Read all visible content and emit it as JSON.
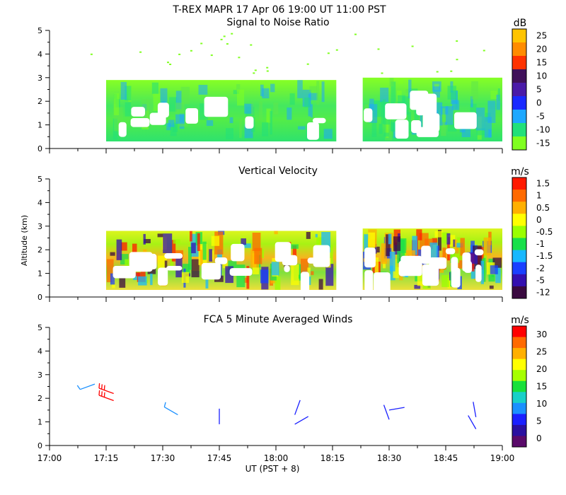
{
  "figure": {
    "title": "T-REX  MAPR 17 Apr 06  19:00 UT  11:00  PST",
    "xlabel": "UT  (PST + 8)",
    "ylabel": "Altitude (km)"
  },
  "chart_data": [
    {
      "id": "snr",
      "type": "heatmap",
      "title": "Signal to Noise Ratio",
      "unit": "dB",
      "x_range_minutes": [
        1020,
        1140
      ],
      "ylim": [
        0,
        5
      ],
      "y_ticks": [
        0,
        1,
        2,
        3,
        4,
        5
      ],
      "colorbar_labels": [
        "25",
        "20",
        "15",
        "10",
        "5",
        "0",
        "-5",
        "-10",
        "-15"
      ],
      "colorbar_colors": [
        "#ffc400",
        "#ff8c00",
        "#ff3300",
        "#40105a",
        "#4a1aa8",
        "#1a2aff",
        "#1ea8ff",
        "#22e07a",
        "#80ff20"
      ],
      "data_segments": [
        {
          "start_minutes": 1035,
          "end_minutes": 1096,
          "top_km": 2.9,
          "bottom_km": 0.3
        },
        {
          "start_minutes": 1103,
          "end_minutes": 1140,
          "top_km": 3.0,
          "bottom_km": 0.3
        }
      ]
    },
    {
      "id": "velocity",
      "type": "heatmap",
      "title": "Vertical Velocity",
      "unit": "m/s",
      "x_range_minutes": [
        1020,
        1140
      ],
      "ylim": [
        0,
        5
      ],
      "y_ticks": [
        0,
        1,
        2,
        3,
        4,
        5
      ],
      "colorbar_labels": [
        "1.5",
        "1",
        "0.5",
        "0",
        "-0.5",
        "-1",
        "-1.5",
        "-2",
        "-5",
        "-12"
      ],
      "colorbar_colors": [
        "#ff1a00",
        "#ff6a00",
        "#ffb000",
        "#ffff00",
        "#9aff00",
        "#18e04a",
        "#18b8ff",
        "#1a40ff",
        "#3410b0",
        "#3a0a40"
      ],
      "data_segments": [
        {
          "start_minutes": 1035,
          "end_minutes": 1096,
          "top_km": 2.8,
          "bottom_km": 0.3
        },
        {
          "start_minutes": 1103,
          "end_minutes": 1140,
          "top_km": 2.9,
          "bottom_km": 0.3
        }
      ]
    },
    {
      "id": "winds",
      "type": "scatter",
      "title": "FCA 5 Minute Averaged Winds",
      "unit": "m/s",
      "x_range_minutes": [
        1020,
        1140
      ],
      "ylim": [
        0,
        5
      ],
      "y_ticks": [
        0,
        1,
        2,
        3,
        4,
        5
      ],
      "x_ticks": [
        "17:00",
        "17:15",
        "17:30",
        "17:45",
        "18:00",
        "18:15",
        "18:30",
        "18:45",
        "19:00"
      ],
      "colorbar_labels": [
        "30",
        "25",
        "20",
        "15",
        "10",
        "5",
        "0"
      ],
      "colorbar_colors": [
        "#ff0000",
        "#ff6a00",
        "#ffb000",
        "#ffff00",
        "#a6ff00",
        "#18e03a",
        "#18d0c8",
        "#1a90ff",
        "#1a20ff",
        "#2a10a0",
        "#5a0a6a"
      ],
      "barbs": [
        {
          "time_minutes": 1032,
          "alt_km": 2.6,
          "speed_ms": 10,
          "dir_deg": 250
        },
        {
          "time_minutes": 1037,
          "alt_km": 2.2,
          "speed_ms": 30,
          "dir_deg": 290
        },
        {
          "time_minutes": 1037,
          "alt_km": 1.9,
          "speed_ms": 30,
          "dir_deg": 290
        },
        {
          "time_minutes": 1054,
          "alt_km": 1.3,
          "speed_ms": 10,
          "dir_deg": 300
        },
        {
          "time_minutes": 1065,
          "alt_km": 0.9,
          "speed_ms": 5,
          "dir_deg": 0
        },
        {
          "time_minutes": 1085,
          "alt_km": 0.9,
          "speed_ms": 5,
          "dir_deg": 60
        },
        {
          "time_minutes": 1085,
          "alt_km": 1.3,
          "speed_ms": 5,
          "dir_deg": 20
        },
        {
          "time_minutes": 1110,
          "alt_km": 1.5,
          "speed_ms": 5,
          "dir_deg": 80
        },
        {
          "time_minutes": 1110,
          "alt_km": 1.1,
          "speed_ms": 5,
          "dir_deg": 340
        },
        {
          "time_minutes": 1133,
          "alt_km": 0.7,
          "speed_ms": 5,
          "dir_deg": 330
        },
        {
          "time_minutes": 1133,
          "alt_km": 1.2,
          "speed_ms": 5,
          "dir_deg": 350
        }
      ]
    }
  ]
}
